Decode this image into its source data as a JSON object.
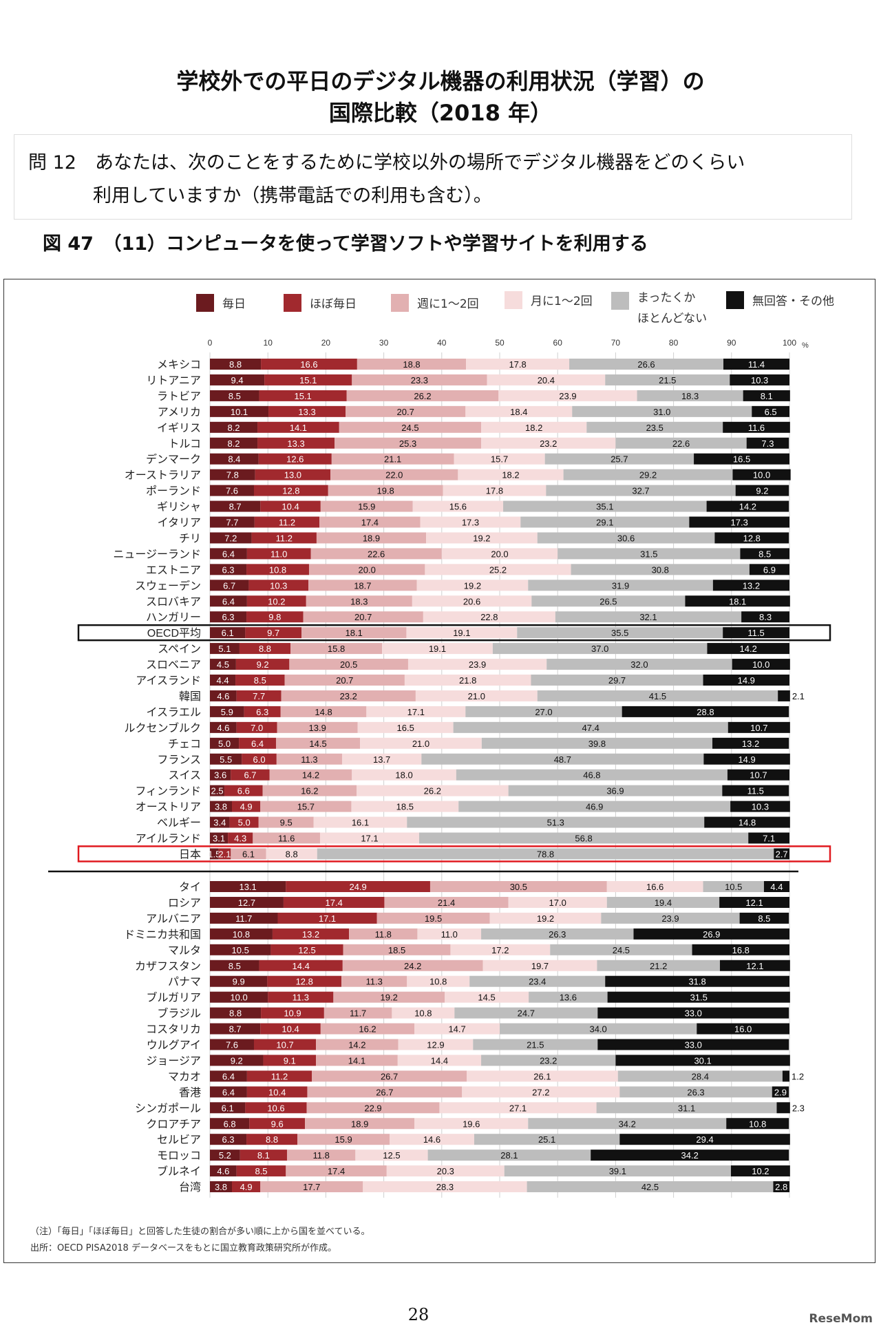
{
  "header": {
    "title_line1": "学校外での平日のデジタル機器の利用状況（学習）の",
    "title_line2": "国際比較（2018 年）",
    "question_line1": "問 12　あなたは、次のことをするために学校以外の場所でデジタル機器をどのくらい",
    "question_line2": "利用していますか（携帯電話での利用も含む）。",
    "figure_caption": "図 47　（11）コンピュータを使って学習ソフトや学習サイトを利用する"
  },
  "notes": [
    "（注）「毎日」「ほぼ毎日」と回答した生徒の割合が多い順に上から国を並べている。",
    "出所：OECD PISA2018 データベースをもとに国立教育政策研究所が作成。"
  ],
  "page_number": "28",
  "logo": "ReseMom",
  "chart_data": {
    "type": "bar",
    "orientation": "horizontal-stacked-100",
    "xlim": [
      0,
      100
    ],
    "xticks": [
      "0",
      "10",
      "20",
      "30",
      "40",
      "50",
      "60",
      "70",
      "80",
      "90",
      "100"
    ],
    "xunit": "%",
    "grid": true,
    "legend_position": "top",
    "series": [
      {
        "name": "毎日",
        "color": "#6b1b1f"
      },
      {
        "name": "ほぼ毎日",
        "color": "#a1292e"
      },
      {
        "name": "週に1〜2回",
        "color": "#e2b0b1"
      },
      {
        "name": "月に1〜2回",
        "color": "#f6dcdc"
      },
      {
        "name": "まったくか\nほとんどない",
        "name_line1": "まったくか",
        "name_line2": "ほとんどない",
        "color": "#bdbdbd"
      },
      {
        "name": "無回答・その他",
        "color": "#111111"
      }
    ],
    "groups": [
      {
        "rows": [
          {
            "label": "メキシコ",
            "values": [
              8.8,
              16.6,
              18.8,
              17.8,
              26.6,
              11.4
            ]
          },
          {
            "label": "リトアニア",
            "values": [
              9.4,
              15.1,
              23.3,
              20.4,
              21.5,
              10.3
            ]
          },
          {
            "label": "ラトビア",
            "values": [
              8.5,
              15.1,
              26.2,
              23.9,
              18.3,
              8.1
            ]
          },
          {
            "label": "アメリカ",
            "values": [
              10.1,
              13.3,
              20.7,
              18.4,
              31.0,
              6.5
            ]
          },
          {
            "label": "イギリス",
            "values": [
              8.2,
              14.1,
              24.5,
              18.2,
              23.5,
              11.6
            ]
          },
          {
            "label": "トルコ",
            "values": [
              8.2,
              13.3,
              25.3,
              23.2,
              22.6,
              7.3
            ]
          },
          {
            "label": "デンマーク",
            "values": [
              8.4,
              12.6,
              21.1,
              15.7,
              25.7,
              16.5
            ]
          },
          {
            "label": "オーストラリア",
            "values": [
              7.8,
              13.0,
              22.0,
              18.2,
              29.2,
              10.0
            ]
          },
          {
            "label": "ポーランド",
            "values": [
              7.6,
              12.8,
              19.8,
              17.8,
              32.7,
              9.2
            ]
          },
          {
            "label": "ギリシャ",
            "values": [
              8.7,
              10.4,
              15.9,
              15.6,
              35.1,
              14.2
            ]
          },
          {
            "label": "イタリア",
            "values": [
              7.7,
              11.2,
              17.4,
              17.3,
              29.1,
              17.3
            ]
          },
          {
            "label": "チリ",
            "values": [
              7.2,
              11.2,
              18.9,
              19.2,
              30.6,
              12.8
            ]
          },
          {
            "label": "ニュージーランド",
            "values": [
              6.4,
              11.0,
              22.6,
              20.0,
              31.5,
              8.5
            ]
          },
          {
            "label": "エストニア",
            "values": [
              6.3,
              10.8,
              20.0,
              25.2,
              30.8,
              6.9
            ]
          },
          {
            "label": "スウェーデン",
            "values": [
              6.7,
              10.3,
              18.7,
              19.2,
              31.9,
              13.2
            ]
          },
          {
            "label": "スロバキア",
            "values": [
              6.4,
              10.2,
              18.3,
              20.6,
              26.5,
              18.1
            ]
          },
          {
            "label": "ハンガリー",
            "values": [
              6.3,
              9.8,
              20.7,
              22.8,
              32.1,
              8.3
            ]
          },
          {
            "label": "OECD平均",
            "values": [
              6.1,
              9.7,
              18.1,
              19.1,
              35.5,
              11.5
            ],
            "highlight": "#111111"
          },
          {
            "label": "スペイン",
            "values": [
              5.1,
              8.8,
              15.8,
              19.1,
              37.0,
              14.2
            ]
          },
          {
            "label": "スロベニア",
            "values": [
              4.5,
              9.2,
              20.5,
              23.9,
              32.0,
              10.0
            ]
          },
          {
            "label": "アイスランド",
            "values": [
              4.4,
              8.5,
              20.7,
              21.8,
              29.7,
              14.9
            ]
          },
          {
            "label": "韓国",
            "values": [
              4.6,
              7.7,
              23.2,
              21.0,
              41.5,
              2.1
            ]
          },
          {
            "label": "イスラエル",
            "values": [
              5.9,
              6.3,
              14.8,
              17.1,
              27.0,
              28.8
            ]
          },
          {
            "label": "ルクセンブルク",
            "values": [
              4.6,
              7.0,
              13.9,
              16.5,
              47.4,
              10.7
            ]
          },
          {
            "label": "チェコ",
            "values": [
              5.0,
              6.4,
              14.5,
              21.0,
              39.8,
              13.2
            ]
          },
          {
            "label": "フランス",
            "values": [
              5.5,
              6.0,
              11.3,
              13.7,
              48.7,
              14.9
            ]
          },
          {
            "label": "スイス",
            "values": [
              3.6,
              6.7,
              14.2,
              18.0,
              46.8,
              10.7
            ]
          },
          {
            "label": "フィンランド",
            "values": [
              2.5,
              6.6,
              16.2,
              26.2,
              36.9,
              11.5
            ]
          },
          {
            "label": "オーストリア",
            "values": [
              3.8,
              4.9,
              15.7,
              18.5,
              46.9,
              10.3
            ]
          },
          {
            "label": "ベルギー",
            "values": [
              3.4,
              5.0,
              9.5,
              16.1,
              51.3,
              14.8
            ]
          },
          {
            "label": "アイルランド",
            "values": [
              3.1,
              4.3,
              11.6,
              17.1,
              56.8,
              7.1
            ]
          },
          {
            "label": "日本",
            "values": [
              1.5,
              2.1,
              6.1,
              8.8,
              78.8,
              2.7
            ],
            "highlight": "#e0191f"
          }
        ]
      },
      {
        "rows": [
          {
            "label": "タイ",
            "values": [
              13.1,
              24.9,
              30.5,
              16.6,
              10.5,
              4.4
            ]
          },
          {
            "label": "ロシア",
            "values": [
              12.7,
              17.4,
              21.4,
              17.0,
              19.4,
              12.1
            ]
          },
          {
            "label": "アルバニア",
            "values": [
              11.7,
              17.1,
              19.5,
              19.2,
              23.9,
              8.5
            ]
          },
          {
            "label": "ドミニカ共和国",
            "values": [
              10.8,
              13.2,
              11.8,
              11.0,
              26.3,
              26.9
            ]
          },
          {
            "label": "マルタ",
            "values": [
              10.5,
              12.5,
              18.5,
              17.2,
              24.5,
              16.8
            ]
          },
          {
            "label": "カザフスタン",
            "values": [
              8.5,
              14.4,
              24.2,
              19.7,
              21.2,
              12.1
            ]
          },
          {
            "label": "パナマ",
            "values": [
              9.9,
              12.8,
              11.3,
              10.8,
              23.4,
              31.8
            ]
          },
          {
            "label": "ブルガリア",
            "values": [
              10.0,
              11.3,
              19.2,
              14.5,
              13.6,
              31.5
            ]
          },
          {
            "label": "ブラジル",
            "values": [
              8.8,
              10.9,
              11.7,
              10.8,
              24.7,
              33.0
            ]
          },
          {
            "label": "コスタリカ",
            "values": [
              8.7,
              10.4,
              16.2,
              14.7,
              34.0,
              16.0
            ]
          },
          {
            "label": "ウルグアイ",
            "values": [
              7.6,
              10.7,
              14.2,
              12.9,
              21.5,
              33.0
            ]
          },
          {
            "label": "ジョージア",
            "values": [
              9.2,
              9.1,
              14.1,
              14.4,
              23.2,
              30.1
            ]
          },
          {
            "label": "マカオ",
            "values": [
              6.4,
              11.2,
              26.7,
              26.1,
              28.4,
              1.2
            ]
          },
          {
            "label": "香港",
            "values": [
              6.4,
              10.4,
              26.7,
              27.2,
              26.3,
              2.9
            ]
          },
          {
            "label": "シンガポール",
            "values": [
              6.1,
              10.6,
              22.9,
              27.1,
              31.1,
              2.3
            ]
          },
          {
            "label": "クロアチア",
            "values": [
              6.8,
              9.6,
              18.9,
              19.6,
              34.2,
              10.8
            ]
          },
          {
            "label": "セルビア",
            "values": [
              6.3,
              8.8,
              15.9,
              14.6,
              25.1,
              29.4
            ]
          },
          {
            "label": "モロッコ",
            "values": [
              5.2,
              8.1,
              11.8,
              12.5,
              28.1,
              34.2
            ]
          },
          {
            "label": "ブルネイ",
            "values": [
              4.6,
              8.5,
              17.4,
              20.3,
              39.1,
              10.2
            ]
          },
          {
            "label": "台湾",
            "values": [
              3.8,
              4.9,
              17.7,
              28.3,
              42.5,
              2.8
            ]
          }
        ]
      }
    ]
  }
}
